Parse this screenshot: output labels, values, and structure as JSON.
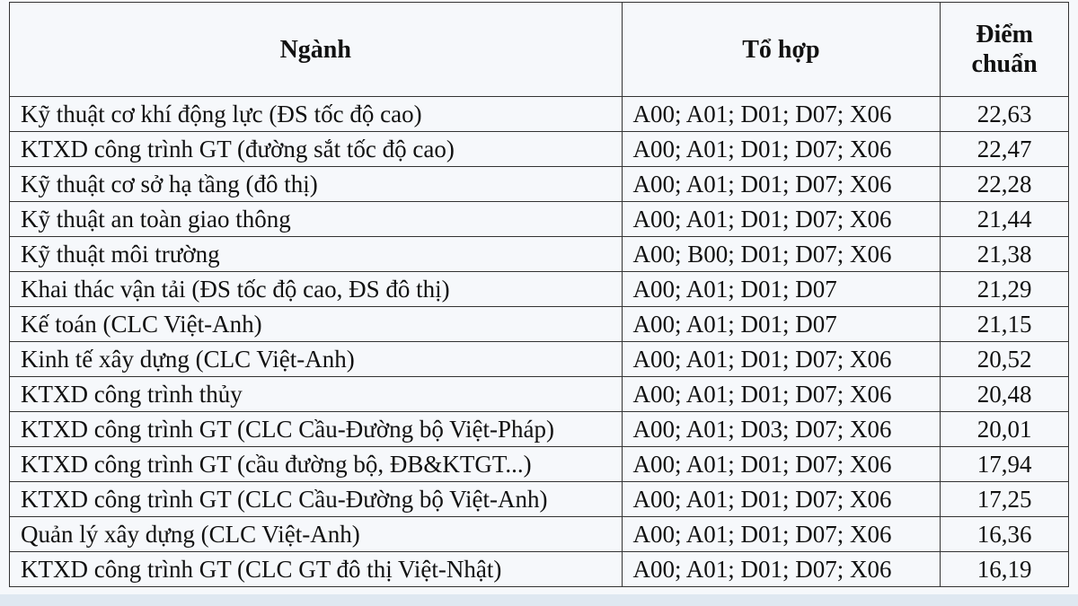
{
  "table": {
    "header": [
      "Ngành",
      "Tổ hợp",
      "Điểm chuẩn"
    ],
    "rows": [
      [
        "Kỹ thuật cơ khí động lực (ĐS tốc độ cao)",
        "A00; A01; D01; D07; X06",
        "22,63"
      ],
      [
        "KTXD công trình GT (đường sắt tốc độ cao)",
        "A00; A01; D01; D07; X06",
        "22,47"
      ],
      [
        "Kỹ thuật cơ sở hạ tầng (đô thị)",
        "A00; A01; D01; D07; X06",
        "22,28"
      ],
      [
        "Kỹ thuật an toàn giao thông",
        "A00; A01; D01; D07; X06",
        "21,44"
      ],
      [
        "Kỹ thuật môi trường",
        "A00; B00; D01; D07; X06",
        "21,38"
      ],
      [
        "Khai thác vận tải (ĐS tốc độ cao, ĐS đô thị)",
        "A00; A01; D01; D07",
        "21,29"
      ],
      [
        "Kế toán (CLC Việt-Anh)",
        "A00; A01; D01; D07",
        "21,15"
      ],
      [
        "Kinh tế xây dựng (CLC Việt-Anh)",
        "A00; A01; D01; D07; X06",
        "20,52"
      ],
      [
        "KTXD công trình thủy",
        "A00; A01; D01; D07; X06",
        "20,48"
      ],
      [
        "KTXD công trình GT (CLC Cầu-Đường bộ Việt-Pháp)",
        "A00; A01; D03; D07; X06",
        "20,01"
      ],
      [
        "KTXD công trình GT (cầu đường bộ, ĐB&KTGT...)",
        "A00; A01; D01; D07; X06",
        "17,94"
      ],
      [
        "KTXD công trình GT (CLC Cầu-Đường bộ Việt-Anh)",
        "A00; A01; D01; D07; X06",
        "17,25"
      ],
      [
        "Quản lý xây dựng (CLC Việt-Anh)",
        "A00; A01; D01; D07; X06",
        "16,36"
      ],
      [
        "KTXD công trình GT (CLC GT đô thị Việt-Nhật)",
        "A00; A01; D01; D07; X06",
        "16,19"
      ]
    ]
  }
}
